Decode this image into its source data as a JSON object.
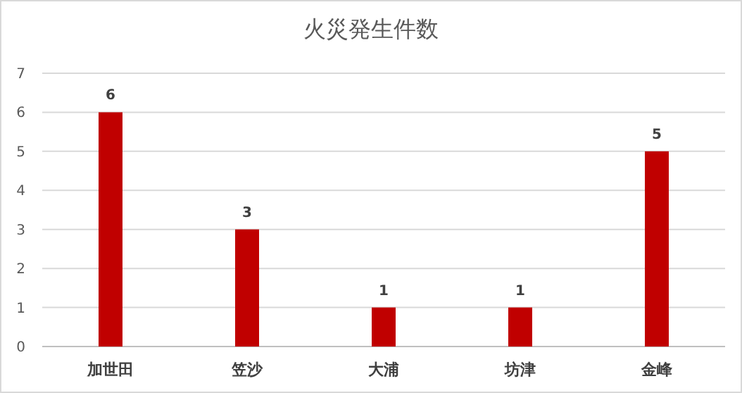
{
  "chart_data": {
    "type": "bar",
    "title": "火災発生件数",
    "categories": [
      "加世田",
      "笠沙",
      "大浦",
      "坊津",
      "金峰"
    ],
    "values": [
      6,
      3,
      1,
      1,
      5
    ],
    "color": "#c00000",
    "ylim": [
      0,
      7
    ],
    "yticks": [
      0,
      1,
      2,
      3,
      4,
      5,
      6,
      7
    ],
    "grid": "y",
    "data_labels": true
  }
}
